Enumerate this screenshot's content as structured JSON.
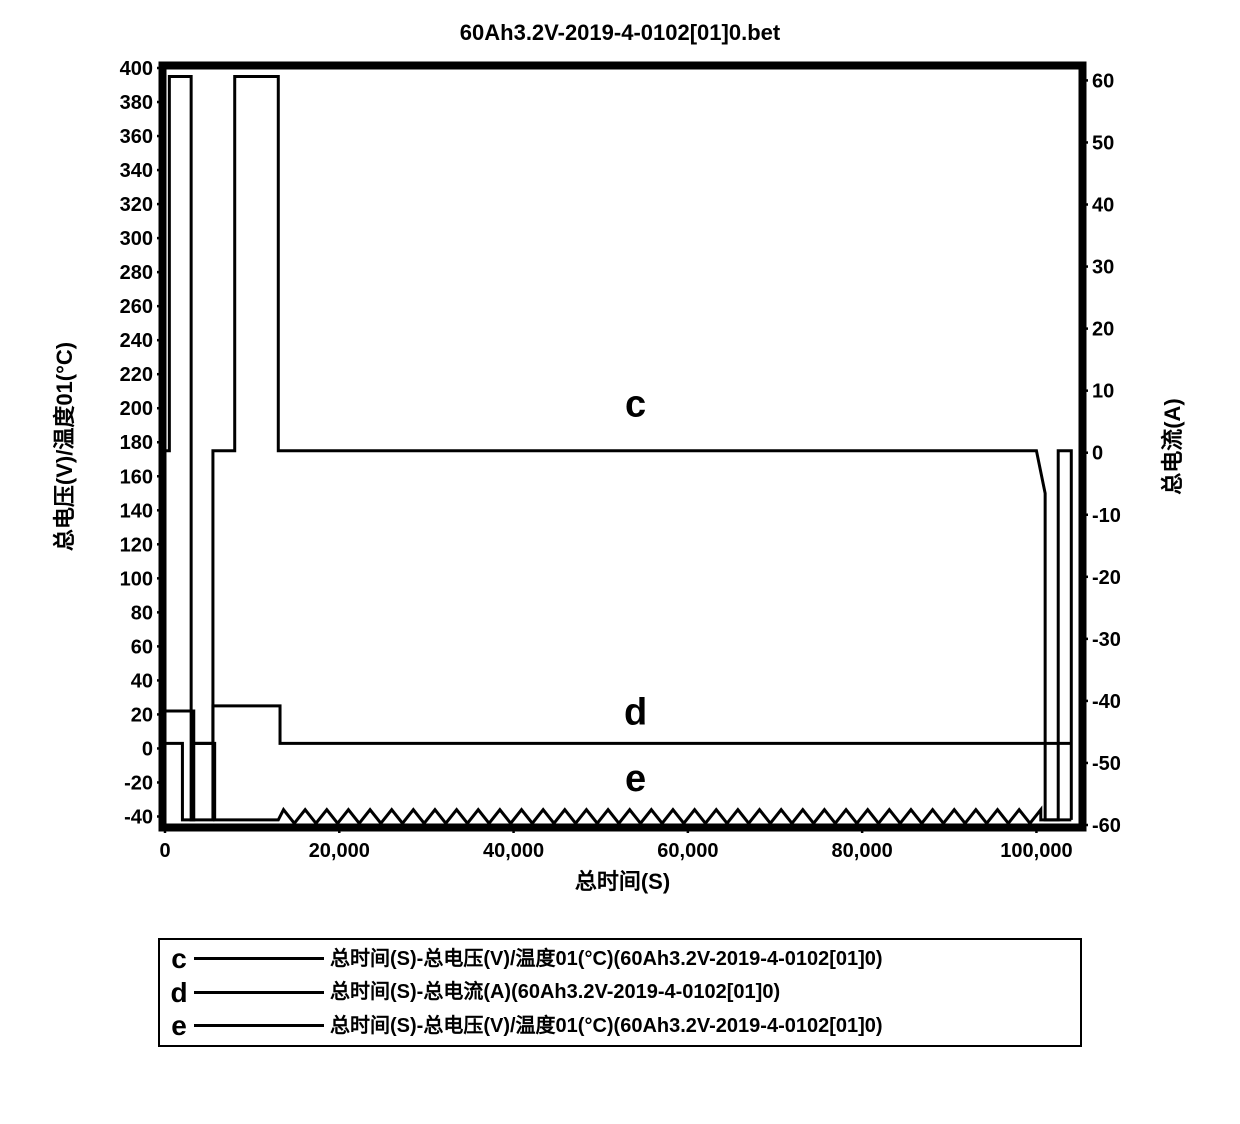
{
  "chart": {
    "type": "line",
    "title": "60Ah3.2V-2019-4-0102[01]0.bet",
    "title_fontsize": 22,
    "xlabel": "总时间(S)",
    "ylabel_left": "总电压(V)/温度01(°C)",
    "ylabel_right": "总电流(A)",
    "label_fontsize": 22,
    "tick_fontsize": 20,
    "background_color": "#ffffff",
    "axis_color": "#000000",
    "grid_color": "#e0e0e0",
    "line_color": "#000000",
    "line_width": 3,
    "x": {
      "min": 0,
      "max": 105000,
      "ticks": [
        0,
        20000,
        40000,
        60000,
        80000,
        100000
      ],
      "tick_labels": [
        "0",
        "20,000",
        "40,000",
        "60,000",
        "80,000",
        "100,000"
      ]
    },
    "y_left": {
      "min": -45,
      "max": 400,
      "ticks": [
        -40,
        -20,
        0,
        20,
        40,
        60,
        80,
        100,
        120,
        140,
        160,
        180,
        200,
        220,
        240,
        260,
        280,
        300,
        320,
        340,
        360,
        380,
        400
      ]
    },
    "y_right": {
      "min": -60,
      "max": 62,
      "ticks": [
        -60,
        -50,
        -40,
        -30,
        -20,
        -10,
        0,
        10,
        20,
        30,
        40,
        50,
        60
      ]
    },
    "series": {
      "c": {
        "label": "c",
        "axis": "left",
        "points": [
          [
            0,
            175
          ],
          [
            500,
            175
          ],
          [
            500,
            395
          ],
          [
            3000,
            395
          ],
          [
            3000,
            -42
          ],
          [
            5500,
            -42
          ],
          [
            5500,
            175
          ],
          [
            8000,
            175
          ],
          [
            8000,
            395
          ],
          [
            13000,
            395
          ],
          [
            13000,
            175
          ],
          [
            100000,
            175
          ],
          [
            101000,
            150
          ],
          [
            101000,
            -42
          ],
          [
            102500,
            -42
          ],
          [
            102500,
            175
          ],
          [
            104000,
            175
          ],
          [
            104000,
            -42
          ]
        ],
        "inchart_label_pos": [
          54000,
          195
        ]
      },
      "d": {
        "label": "d",
        "axis": "left",
        "points": [
          [
            0,
            22
          ],
          [
            3300,
            22
          ],
          [
            3300,
            3
          ],
          [
            5500,
            3
          ],
          [
            5500,
            25
          ],
          [
            13200,
            25
          ],
          [
            13200,
            3
          ],
          [
            104000,
            3
          ]
        ],
        "inchart_label_pos": [
          54000,
          14
        ]
      },
      "e": {
        "label": "e",
        "axis": "left",
        "points_prefix": [
          [
            0,
            3
          ],
          [
            2000,
            3
          ],
          [
            2000,
            -42
          ],
          [
            3300,
            -42
          ],
          [
            3300,
            3
          ],
          [
            5700,
            3
          ],
          [
            5700,
            -42
          ],
          [
            13000,
            -42
          ],
          [
            13600,
            -36
          ]
        ],
        "wave_start_x": 13600,
        "wave_end_x": 100500,
        "wave_base_y": -40,
        "wave_amplitude": 4,
        "wave_count": 70,
        "points_suffix": [
          [
            100500,
            -42
          ],
          [
            104000,
            -42
          ]
        ],
        "inchart_label_pos": [
          54000,
          -25
        ]
      }
    },
    "legend": {
      "entries": [
        {
          "letter": "c",
          "text": "总时间(S)-总电压(V)/温度01(°C)(60Ah3.2V-2019-4-0102[01]0)"
        },
        {
          "letter": "d",
          "text": "总时间(S)-总电流(A)(60Ah3.2V-2019-4-0102[01]0)"
        },
        {
          "letter": "e",
          "text": "总时间(S)-总电压(V)/温度01(°C)(60Ah3.2V-2019-4-0102[01]0)"
        }
      ]
    }
  }
}
